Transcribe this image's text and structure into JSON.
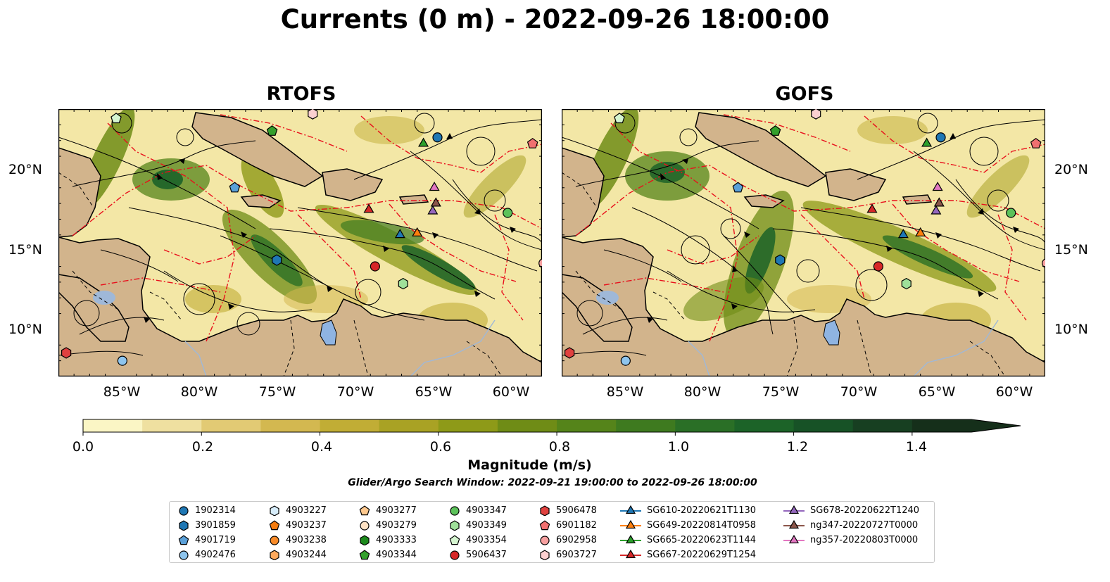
{
  "title": "Currents (0 m) - 2022-09-26 18:00:00",
  "panels": [
    {
      "title": "RTOFS"
    },
    {
      "title": "GOFS"
    }
  ],
  "map": {
    "lat_range": [
      7,
      24
    ],
    "lon_range": [
      -89,
      -58
    ],
    "lat_ticks": [
      {
        "value": 20,
        "label": "20°N"
      },
      {
        "value": 15,
        "label": "15°N"
      },
      {
        "value": 10,
        "label": "10°N"
      }
    ],
    "lon_ticks": [
      {
        "value": -85,
        "label": "85°W"
      },
      {
        "value": -80,
        "label": "80°W"
      },
      {
        "value": -75,
        "label": "75°W"
      },
      {
        "value": -70,
        "label": "70°W"
      },
      {
        "value": -65,
        "label": "65°W"
      },
      {
        "value": -60,
        "label": "60°W"
      }
    ],
    "colors": {
      "land": "#d2b48c",
      "water_low": "#f5eebb",
      "lake": "#8fb4e2",
      "eez": "#e8101c",
      "streamline": "#000000"
    },
    "markers_rtofs": [
      {
        "id": "4903354",
        "lon": -85.3,
        "lat": 23.4
      },
      {
        "id": "4903344",
        "lon": -75.3,
        "lat": 22.6
      },
      {
        "id": "6903727",
        "lon": -72.7,
        "lat": 23.7
      },
      {
        "id": "1902314",
        "lon": -64.7,
        "lat": 22.2
      },
      {
        "id": "SG665-20220623T1144",
        "lon": -65.6,
        "lat": 21.8
      },
      {
        "id": "6901182",
        "lon": -58.6,
        "lat": 21.8
      },
      {
        "id": "4901719",
        "lon": -77.7,
        "lat": 19.0
      },
      {
        "id": "ng357-20220803T0000",
        "lon": -64.9,
        "lat": 19.0
      },
      {
        "id": "ng347-20220727T0000",
        "lon": -64.8,
        "lat": 18.0
      },
      {
        "id": "SG678-20220622T1240",
        "lon": -65.0,
        "lat": 17.5
      },
      {
        "id": "SG667-20220629T1254",
        "lon": -69.1,
        "lat": 17.6
      },
      {
        "id": "4903347",
        "lon": -60.2,
        "lat": 17.4
      },
      {
        "id": "SG610-20220621T1130",
        "lon": -67.1,
        "lat": 16.0
      },
      {
        "id": "SG649-20220814T0958",
        "lon": -66.0,
        "lat": 16.1
      },
      {
        "id": "3901859",
        "lon": -75.0,
        "lat": 14.4
      },
      {
        "id": "5906437",
        "lon": -68.7,
        "lat": 14.0
      },
      {
        "id": "6902958",
        "lon": -57.9,
        "lat": 14.2
      },
      {
        "id": "4903349",
        "lon": -66.9,
        "lat": 12.9
      },
      {
        "id": "5906478",
        "lon": -88.5,
        "lat": 8.5
      },
      {
        "id": "4902476",
        "lon": -84.9,
        "lat": 8.0
      }
    ],
    "markers_gofs": [
      {
        "id": "4903354",
        "lon": -85.3,
        "lat": 23.4
      },
      {
        "id": "4903344",
        "lon": -75.3,
        "lat": 22.6
      },
      {
        "id": "6903727",
        "lon": -72.7,
        "lat": 23.7
      },
      {
        "id": "1902314",
        "lon": -64.7,
        "lat": 22.2
      },
      {
        "id": "SG665-20220623T1144",
        "lon": -65.6,
        "lat": 21.8
      },
      {
        "id": "6901182",
        "lon": -58.6,
        "lat": 21.8
      },
      {
        "id": "4901719",
        "lon": -77.7,
        "lat": 19.0
      },
      {
        "id": "ng357-20220803T0000",
        "lon": -64.9,
        "lat": 19.0
      },
      {
        "id": "ng347-20220727T0000",
        "lon": -64.8,
        "lat": 18.0
      },
      {
        "id": "SG678-20220622T1240",
        "lon": -65.0,
        "lat": 17.5
      },
      {
        "id": "SG667-20220629T1254",
        "lon": -69.1,
        "lat": 17.6
      },
      {
        "id": "4903347",
        "lon": -60.2,
        "lat": 17.4
      },
      {
        "id": "SG610-20220621T1130",
        "lon": -67.1,
        "lat": 16.0
      },
      {
        "id": "SG649-20220814T0958",
        "lon": -66.0,
        "lat": 16.1
      },
      {
        "id": "3901859",
        "lon": -75.0,
        "lat": 14.4
      },
      {
        "id": "5906437",
        "lon": -68.7,
        "lat": 14.0
      },
      {
        "id": "6902958",
        "lon": -57.9,
        "lat": 14.2
      },
      {
        "id": "4903349",
        "lon": -66.9,
        "lat": 12.9
      },
      {
        "id": "5906478",
        "lon": -88.5,
        "lat": 8.5
      },
      {
        "id": "4902476",
        "lon": -84.9,
        "lat": 8.0
      }
    ]
  },
  "colorbar": {
    "label": "Magnitude (m/s)",
    "min": 0.0,
    "max": 1.5,
    "step": 0.1,
    "extend": "max",
    "ticks": [
      "0.0",
      "0.2",
      "0.4",
      "0.6",
      "0.8",
      "1.0",
      "1.2",
      "1.4"
    ],
    "tick_values": [
      0.0,
      0.2,
      0.4,
      0.6,
      0.8,
      1.0,
      1.2,
      1.4
    ],
    "colors": [
      "#fbf6c5",
      "#efe0a0",
      "#e2ca74",
      "#d3b850",
      "#c1ad35",
      "#a9a224",
      "#8e9a18",
      "#6f8c16",
      "#55841a",
      "#3e7a1f",
      "#2a6f26",
      "#1c6328",
      "#175226",
      "#173f21",
      "#152f1a"
    ]
  },
  "search_window": "Glider/Argo Search Window: 2022-09-21 19:00:00 to 2022-09-26 18:00:00",
  "legend": [
    {
      "label": "1902314",
      "marker": "circle",
      "color": "#1f77b4"
    },
    {
      "label": "3901859",
      "marker": "hexagon",
      "color": "#1f77b4"
    },
    {
      "label": "4901719",
      "marker": "pentagon",
      "color": "#5aa0d8"
    },
    {
      "label": "4902476",
      "marker": "circle",
      "color": "#8ec5ee"
    },
    {
      "label": "4903227",
      "marker": "hexagon",
      "color": "#d6ecfa"
    },
    {
      "label": "4903237",
      "marker": "pentagon",
      "color": "#f57c0f"
    },
    {
      "label": "4903238",
      "marker": "circle",
      "color": "#f88a28"
    },
    {
      "label": "4903244",
      "marker": "hexagon",
      "color": "#ffa95c"
    },
    {
      "label": "4903277",
      "marker": "pentagon",
      "color": "#ffc98e"
    },
    {
      "label": "4903279",
      "marker": "circle",
      "color": "#ffe2c4"
    },
    {
      "label": "4903333",
      "marker": "hexagon",
      "color": "#1c8a1c"
    },
    {
      "label": "4903344",
      "marker": "pentagon",
      "color": "#33a02c"
    },
    {
      "label": "4903347",
      "marker": "circle",
      "color": "#5cc25a"
    },
    {
      "label": "4903349",
      "marker": "hexagon",
      "color": "#9fe09a"
    },
    {
      "label": "4903354",
      "marker": "pentagon",
      "color": "#d5f5d0"
    },
    {
      "label": "5906437",
      "marker": "circle",
      "color": "#d62728"
    },
    {
      "label": "5906478",
      "marker": "hexagon",
      "color": "#e0413f"
    },
    {
      "label": "6901182",
      "marker": "pentagon",
      "color": "#f07070"
    },
    {
      "label": "6902958",
      "marker": "circle",
      "color": "#f7a0a0"
    },
    {
      "label": "6903727",
      "marker": "hexagon",
      "color": "#fcd0d0"
    },
    {
      "label": "SG610-20220621T1130",
      "marker": "triangle",
      "color": "#1f77b4"
    },
    {
      "label": "SG649-20220814T0958",
      "marker": "triangle",
      "color": "#ff7f0e"
    },
    {
      "label": "SG665-20220623T1144",
      "marker": "triangle",
      "color": "#2ca02c"
    },
    {
      "label": "SG667-20220629T1254",
      "marker": "triangle",
      "color": "#d62728"
    },
    {
      "label": "SG678-20220622T1240",
      "marker": "triangle",
      "color": "#9467bd"
    },
    {
      "label": "ng347-20220727T0000",
      "marker": "triangle",
      "color": "#8c564b"
    },
    {
      "label": "ng357-20220803T0000",
      "marker": "triangle",
      "color": "#e377c2"
    }
  ]
}
